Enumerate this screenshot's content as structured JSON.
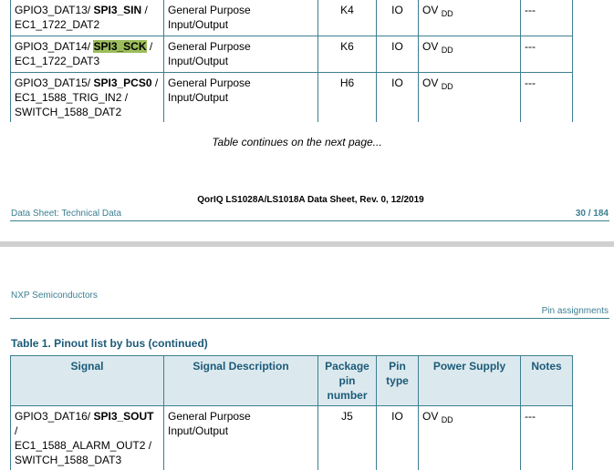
{
  "top_table": {
    "rows": [
      {
        "signal_prefix": "GPIO3_DAT13/ ",
        "signal_bold": "SPI3_SIN",
        "signal_suffix": " /",
        "signal_line2": "EC1_1722_DAT2",
        "signal_line3": "",
        "description": "General Purpose Input/Output",
        "package_pin": "K4",
        "pin_type": "IO",
        "power_supply": "OV",
        "power_supply_sub": "DD",
        "notes": "---"
      },
      {
        "signal_prefix": "GPIO3_DAT14/ ",
        "signal_bold": "SPI3_SCK",
        "signal_suffix": " /",
        "signal_line2": "EC1_1722_DAT3",
        "signal_line3": "",
        "description": "General Purpose Input/Output",
        "package_pin": "K6",
        "pin_type": "IO",
        "power_supply": "OV",
        "power_supply_sub": "DD",
        "notes": "---"
      },
      {
        "signal_prefix": "GPIO3_DAT15/ ",
        "signal_bold": "SPI3_PCS0",
        "signal_suffix": " /",
        "signal_line2": "EC1_1588_TRIG_IN2 /",
        "signal_line3": "SWITCH_1588_DAT2",
        "description": "General Purpose Input/Output",
        "package_pin": "H6",
        "pin_type": "IO",
        "power_supply": "OV",
        "power_supply_sub": "DD",
        "notes": "---"
      }
    ]
  },
  "continues_text": "Table continues on the next page...",
  "footer": {
    "title": "QorIQ LS1028A/LS1018A Data Sheet, Rev. 0, 12/2019",
    "left": "Data Sheet: Technical Data",
    "page": "30 / 184"
  },
  "header": {
    "company": "NXP Semiconductors",
    "section": "Pin assignments"
  },
  "table_caption": "Table 1.  Pinout list by bus (continued)",
  "bottom_table": {
    "headers": {
      "signal": "Signal",
      "description": "Signal Description",
      "package_pin_l1": "Package",
      "package_pin_l2": "pin",
      "package_pin_l3": "number",
      "pin_type_l1": "Pin",
      "pin_type_l2": "type",
      "power_supply": "Power Supply",
      "notes": "Notes"
    },
    "rows": [
      {
        "signal_prefix": "GPIO3_DAT16/ ",
        "signal_bold": "SPI3_SOUT",
        "signal_suffix": " /",
        "signal_line2": "EC1_1588_ALARM_OUT2 /",
        "signal_line3": "SWITCH_1588_DAT3",
        "description": "General Purpose Input/Output",
        "package_pin": "J5",
        "pin_type": "IO",
        "power_supply": "OV",
        "power_supply_sub": "DD",
        "notes": "---"
      }
    ]
  },
  "highlight_color": "#9cbd5b",
  "accent_color": "#3d7f91"
}
